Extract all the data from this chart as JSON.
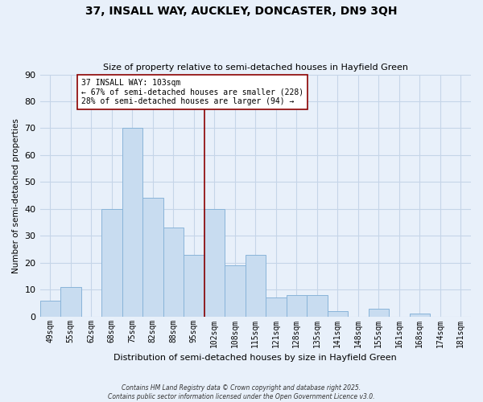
{
  "title": "37, INSALL WAY, AUCKLEY, DONCASTER, DN9 3QH",
  "subtitle": "Size of property relative to semi-detached houses in Hayfield Green",
  "xlabel": "Distribution of semi-detached houses by size in Hayfield Green",
  "ylabel": "Number of semi-detached properties",
  "bar_labels": [
    "49sqm",
    "55sqm",
    "62sqm",
    "68sqm",
    "75sqm",
    "82sqm",
    "88sqm",
    "95sqm",
    "102sqm",
    "108sqm",
    "115sqm",
    "121sqm",
    "128sqm",
    "135sqm",
    "141sqm",
    "148sqm",
    "155sqm",
    "161sqm",
    "168sqm",
    "174sqm",
    "181sqm"
  ],
  "bar_values": [
    6,
    11,
    0,
    40,
    70,
    44,
    33,
    23,
    40,
    19,
    23,
    7,
    8,
    8,
    2,
    0,
    3,
    0,
    1,
    0,
    0
  ],
  "bar_color": "#c8dcf0",
  "bar_edge_color": "#89b4d9",
  "vline_color": "#8b0000",
  "annotation_title": "37 INSALL WAY: 103sqm",
  "annotation_line1": "← 67% of semi-detached houses are smaller (228)",
  "annotation_line2": "28% of semi-detached houses are larger (94) →",
  "annotation_box_color": "#ffffff",
  "annotation_box_edge": "#8b0000",
  "ylim": [
    0,
    90
  ],
  "yticks": [
    0,
    10,
    20,
    30,
    40,
    50,
    60,
    70,
    80,
    90
  ],
  "background_color": "#e8f0fa",
  "grid_color": "#c5d5e8",
  "footer1": "Contains HM Land Registry data © Crown copyright and database right 2025.",
  "footer2": "Contains public sector information licensed under the Open Government Licence v3.0."
}
